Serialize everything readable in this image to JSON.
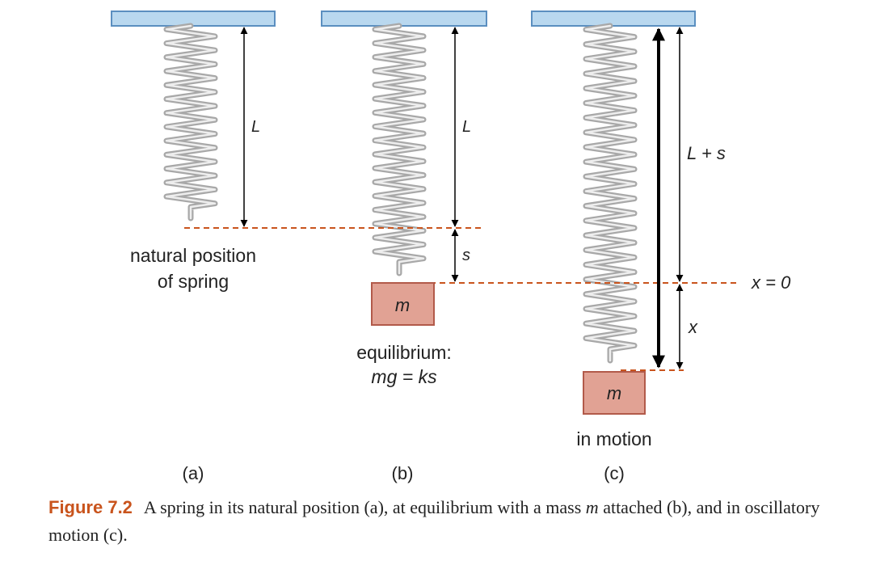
{
  "panels": {
    "a": {
      "label": "(a)",
      "length_label": "L",
      "caption_line1": "natural position",
      "caption_line2": "of spring"
    },
    "b": {
      "label": "(b)",
      "length_label": "L",
      "stretch_label": "s",
      "mass_label": "m",
      "caption_line1": "equilibrium:",
      "caption_line2": "mg = ks"
    },
    "c": {
      "label": "(c)",
      "total_label": "L + s",
      "displacement_label": "x",
      "origin_label": "x = 0",
      "mass_label": "m",
      "caption": "in motion"
    }
  },
  "caption": {
    "figure_number": "Figure 7.2",
    "text_before_m": "A spring in its natural position (a), at equilibrium with a mass",
    "m": "m",
    "text_after_m": "attached (b), and in oscillatory motion (c)."
  },
  "colors": {
    "ceiling_fill": "#b9d8ef",
    "ceiling_stroke": "#5b8fc0",
    "mass_fill": "#e1a294",
    "mass_stroke": "#b25a4a",
    "dashed_line": "#c9541d",
    "caption_accent": "#c9541d",
    "spring": "#a8a8a8"
  }
}
